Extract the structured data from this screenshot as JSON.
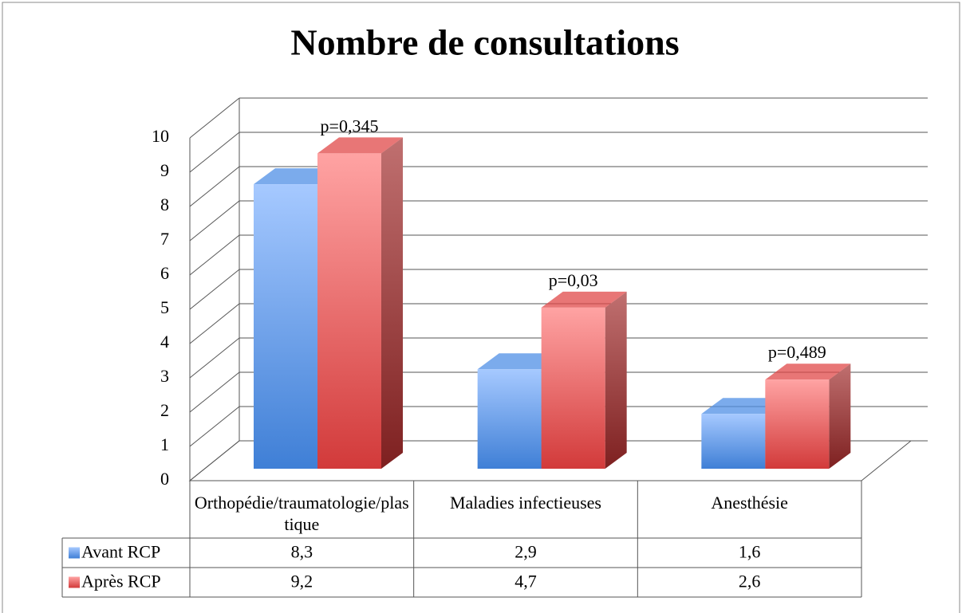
{
  "chart_data": {
    "type": "bar3d",
    "title": "Nombre de consultations",
    "categories": [
      "Orthopédie/traumatologie/plastique",
      "Maladies infectieuses",
      "Anesthésie"
    ],
    "series": [
      {
        "name": "Avant RCP",
        "color": "#4f8fe6",
        "values": [
          8.3,
          2.9,
          1.6
        ],
        "value_labels": [
          "8,3",
          "2,9",
          "1,6"
        ]
      },
      {
        "name": "Après RCP",
        "color": "#e04848",
        "values": [
          9.2,
          4.7,
          2.6
        ],
        "value_labels": [
          "9,2",
          "4,7",
          "2,6"
        ]
      }
    ],
    "annotations": [
      "p=0,345",
      "p=0,03",
      "p=0,489"
    ],
    "ylim": [
      0,
      10
    ],
    "yticks": [
      0,
      1,
      2,
      3,
      4,
      5,
      6,
      7,
      8,
      9,
      10
    ],
    "grid": true
  }
}
